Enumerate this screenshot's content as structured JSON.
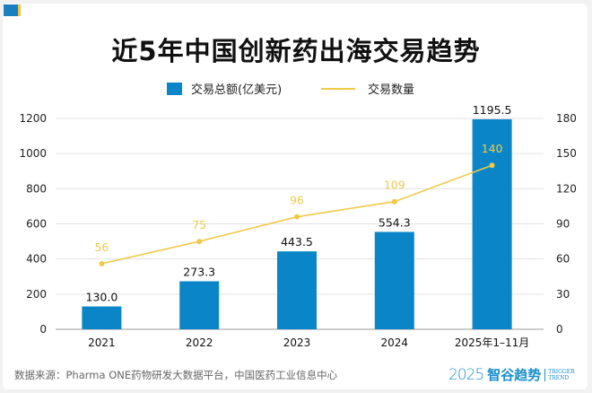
{
  "chart_data": {
    "type": "bar+line",
    "title": "近5年中国创新药出海交易趋势",
    "categories": [
      "2021",
      "2022",
      "2023",
      "2024",
      "2025年1–11月"
    ],
    "series": [
      {
        "name": "交易总额(亿美元)",
        "type": "bar",
        "axis": "left",
        "values": [
          130.0,
          273.3,
          443.5,
          554.3,
          1195.5
        ],
        "labels": [
          "130.0",
          "273.3",
          "443.5",
          "554.3",
          "1195.5"
        ],
        "color": "#0a86c8"
      },
      {
        "name": "交易数量",
        "type": "line",
        "axis": "right",
        "values": [
          56,
          75,
          96,
          109,
          140
        ],
        "labels": [
          "56",
          "75",
          "96",
          "109",
          "140"
        ],
        "color": "#f0c94a"
      }
    ],
    "y_left": {
      "range": [
        0,
        1200
      ],
      "ticks": [
        "0",
        "200",
        "400",
        "600",
        "800",
        "1000",
        "1200"
      ]
    },
    "y_right": {
      "range": [
        0,
        180
      ],
      "ticks": [
        "0",
        "30",
        "60",
        "90",
        "120",
        "150",
        "180"
      ]
    },
    "grid": true,
    "legend_placement": "top"
  },
  "footer": {
    "source": "数据来源：Pharma ONE药物研发大数据平台，中国医药工业信息中心",
    "logo_year": "2025",
    "logo_cn": "智谷趋势",
    "logo_en_1": "TRIGGER",
    "logo_en_2": "TREND"
  }
}
